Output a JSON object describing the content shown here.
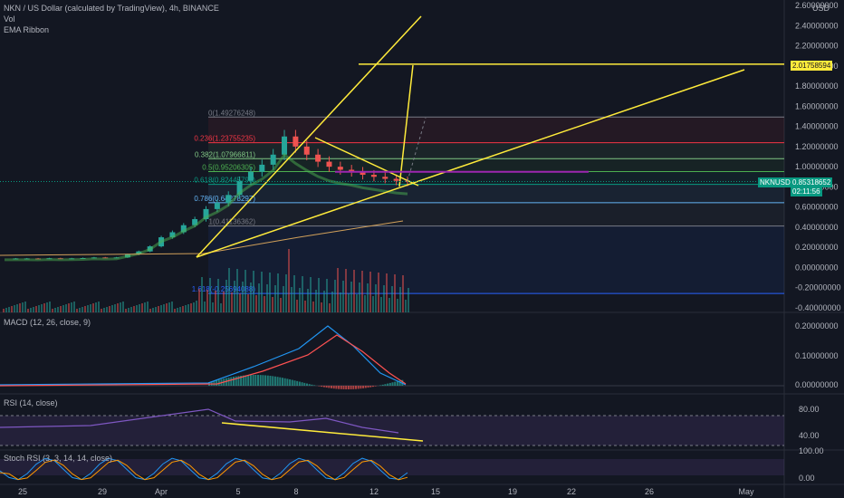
{
  "header": {
    "title": "NKN / US Dollar (calculated by TradingView), 4h, BINANCE",
    "vol_label": "Vol",
    "ema_label": "EMA Ribbon",
    "currency": "USD"
  },
  "price_axis": {
    "ticks": [
      "2.60000000",
      "2.40000000",
      "2.20000000",
      "2.00000000",
      "1.80000000",
      "1.60000000",
      "1.40000000",
      "1.20000000",
      "1.00000000",
      "0.80000000",
      "0.60000000",
      "0.40000000",
      "0.20000000",
      "0.00000000",
      "-0.20000000",
      "-0.40000000"
    ],
    "hline_label": "2.01758594",
    "current_label": "0.85318652",
    "countdown": "02:11:56",
    "symbol_tag": "NKNUSD"
  },
  "fib_levels": [
    {
      "ratio_label": "0(1.49276248)",
      "value": 1.49276248,
      "color": "#787b86"
    },
    {
      "ratio_label": "0.236(1.23755235)",
      "value": 1.23755235,
      "color": "#f23645"
    },
    {
      "ratio_label": "0.382(1.07966811)",
      "value": 1.07966811,
      "color": "#81c784"
    },
    {
      "ratio_label": "0.5(0.95206305)",
      "value": 0.95206305,
      "color": "#4caf50"
    },
    {
      "ratio_label": "0.618(0.82445798)",
      "value": 0.82445798,
      "color": "#089981"
    },
    {
      "ratio_label": "0.786(0.64278297)",
      "value": 0.64278297,
      "color": "#64b5f6"
    },
    {
      "ratio_label": "1(0.41136362)",
      "value": 0.41136362,
      "color": "#787b86"
    },
    {
      "ratio_label": "1.618(-0.25694088)",
      "value": -0.25694088,
      "color": "#2962ff"
    }
  ],
  "x_axis": {
    "labels": [
      "25",
      "29",
      "Apr",
      "5",
      "8",
      "12",
      "15",
      "19",
      "22",
      "26",
      "May"
    ]
  },
  "macd": {
    "title": "MACD (12, 26, close, 9)",
    "ticks": [
      "0.20000000",
      "0.10000000",
      "0.00000000"
    ]
  },
  "rsi": {
    "title": "RSI (14, close)",
    "ticks": [
      "80.00",
      "40.00"
    ]
  },
  "stoch": {
    "title": "Stoch RSI (3, 3, 14, 14, close)",
    "ticks": [
      "100.00",
      "0.00"
    ]
  },
  "colors": {
    "up": "#26a69a",
    "down": "#ef5350",
    "drawing": "#ffeb3b",
    "macd": "#2196f3",
    "signal": "#ff5252",
    "rsi": "#7e57c2",
    "bg": "#131722"
  },
  "chart_data": {
    "type": "candlestick",
    "timeframe": "4h",
    "x_start_label": "25 Mar",
    "date_index_note": "day offset from 25 Mar",
    "closes": [
      0.09,
      0.09,
      0.09,
      0.088,
      0.092,
      0.09,
      0.091,
      0.094,
      0.1,
      0.098,
      0.1,
      0.13,
      0.16,
      0.21,
      0.3,
      0.35,
      0.42,
      0.48,
      0.58,
      0.64,
      0.72,
      0.86,
      0.95,
      1.02,
      1.12,
      1.3,
      1.2,
      1.12,
      1.05,
      1.0,
      0.97,
      0.95,
      0.92,
      0.9,
      0.88,
      0.86,
      0.85
    ],
    "last_price": 0.85318652,
    "hline": 2.01758594,
    "ylim": [
      -0.4,
      2.6
    ]
  }
}
